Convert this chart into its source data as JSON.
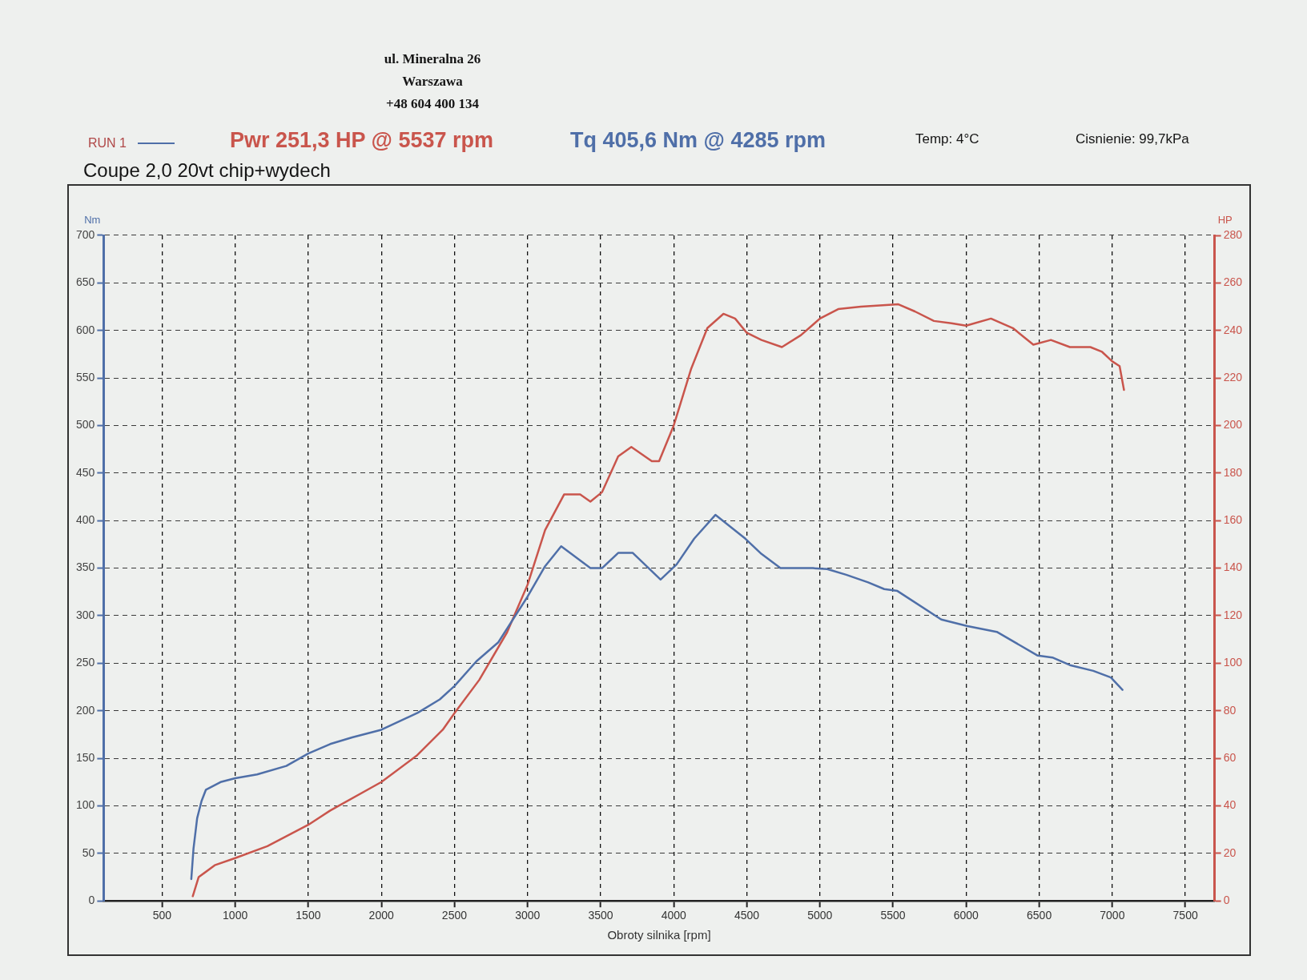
{
  "chart_data": {
    "type": "line",
    "title": "Coupe 2,0 20vt chip+wydech",
    "xlabel": "Obroty silnika [rpm]",
    "ylabel": "Nm",
    "y2label": "HP",
    "annotations": [
      "ul. Mineralna 26",
      "Warszawa",
      "+48 604 400 134",
      "Pwr 251,3 HP @ 5537 rpm",
      "Tq 405,6 Nm @ 4285 rpm",
      "Temp: 4°C",
      "Cisnienie: 99,7kPa"
    ],
    "series": [
      {
        "name": "RUN 1",
        "color": "#4f6fa8",
        "x": [
          700,
          715,
          740,
          770,
          800,
          900,
          1000,
          1150,
          1350,
          1500,
          1650,
          1800,
          2000,
          2250,
          2400,
          2500,
          2650,
          2800,
          3000,
          3120,
          3230,
          3430,
          3510,
          3620,
          3720,
          3910,
          4020,
          4140,
          4285,
          4490,
          4600,
          4730,
          4950,
          5050,
          5180,
          5330,
          5440,
          5530,
          5830,
          6010,
          6210,
          6490,
          6590,
          6710,
          6870,
          6990,
          7070
        ],
        "values": [
          23,
          55,
          87,
          105,
          117,
          125,
          129,
          133,
          142,
          155,
          165,
          172,
          180,
          198,
          212,
          226,
          252,
          272,
          320,
          352,
          373,
          350,
          350,
          366,
          366,
          338,
          354,
          381,
          406,
          381,
          365,
          350,
          350,
          349,
          343,
          335,
          328,
          326,
          296,
          289,
          283,
          258,
          256,
          248,
          242,
          235,
          222
        ]
      },
      {
        "color": "#c9554c",
        "axis": "y2",
        "x": [
          710,
          750,
          860,
          1000,
          1220,
          1500,
          1650,
          2000,
          2240,
          2420,
          2500,
          2670,
          2860,
          3000,
          3120,
          3250,
          3360,
          3430,
          3510,
          3620,
          3710,
          3850,
          3900,
          4000,
          4120,
          4230,
          4340,
          4420,
          4500,
          4600,
          4740,
          4870,
          5000,
          5125,
          5280,
          5537,
          5650,
          5780,
          5900,
          6000,
          6170,
          6320,
          6460,
          6580,
          6710,
          6850,
          6930,
          7000,
          7050,
          7080
        ],
        "values": [
          2,
          10,
          15,
          18,
          23,
          32,
          38,
          50,
          61,
          72,
          79,
          93,
          113,
          133,
          156,
          171,
          171,
          168,
          172,
          187,
          191,
          185,
          185,
          200,
          224,
          241,
          247,
          245,
          239,
          236,
          233,
          238,
          245,
          249,
          250,
          251,
          248,
          244,
          243,
          242,
          245,
          241,
          234,
          236,
          233,
          233,
          231,
          227,
          225,
          215
        ]
      }
    ],
    "xlim": [
      100,
      7700
    ],
    "xticks": [
      500,
      1000,
      1500,
      2000,
      2500,
      3000,
      3500,
      4000,
      4500,
      5000,
      5500,
      6000,
      6500,
      7000,
      7500
    ],
    "ylim": [
      0,
      700
    ],
    "yticks": [
      0,
      50,
      100,
      150,
      200,
      250,
      300,
      350,
      400,
      450,
      500,
      550,
      600,
      650,
      700
    ],
    "y2lim": [
      0,
      280
    ],
    "y2ticks": [
      0,
      20,
      40,
      60,
      80,
      100,
      120,
      140,
      160,
      180,
      200,
      220,
      240,
      260,
      280
    ],
    "grid": true,
    "legend": "top left"
  }
}
